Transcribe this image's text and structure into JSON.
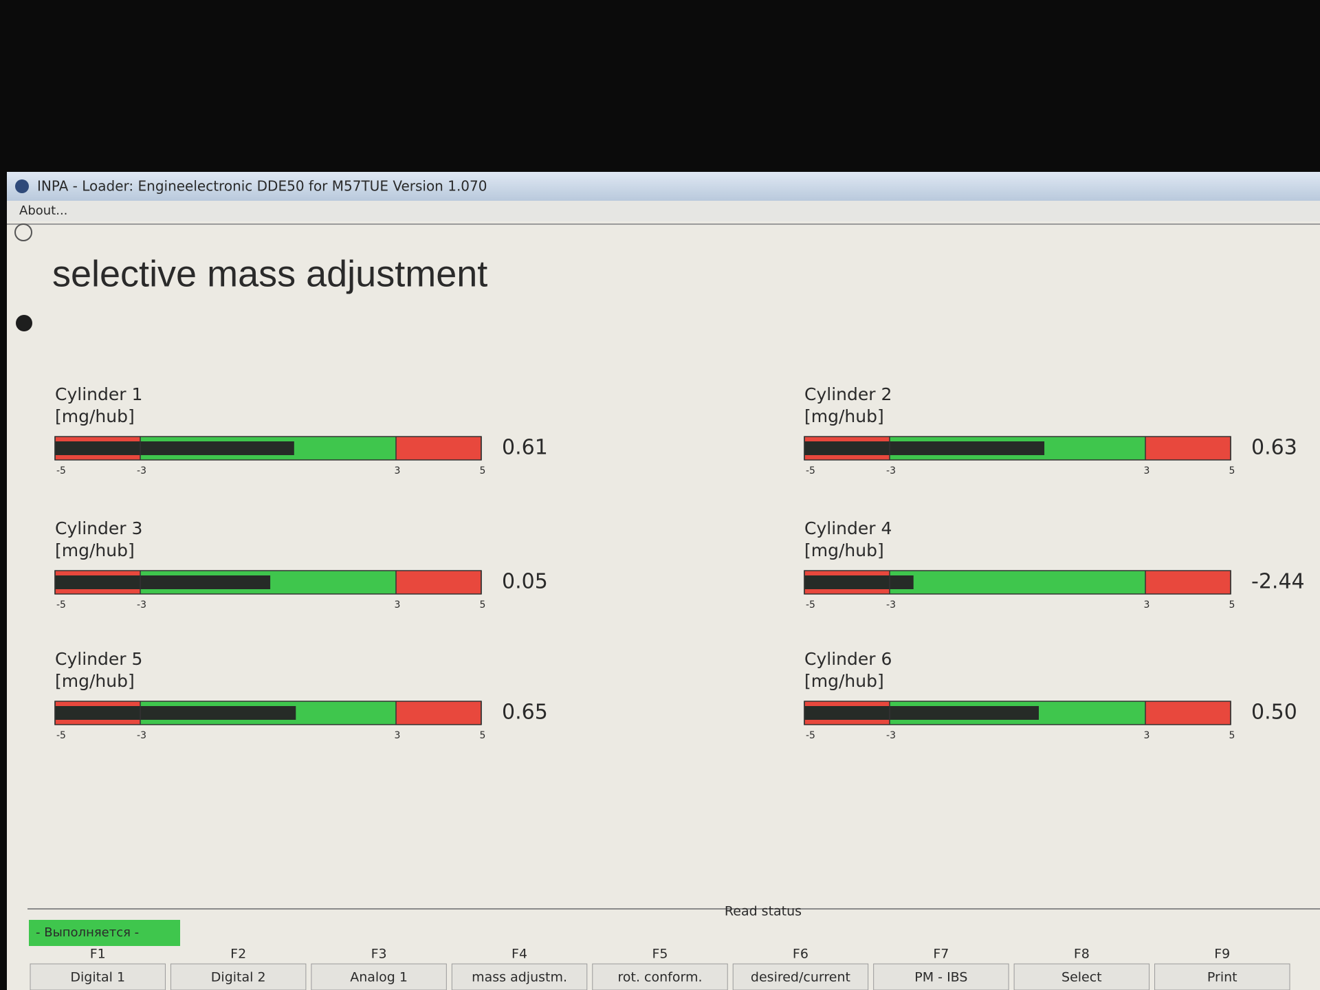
{
  "window": {
    "title": "INPA - Loader:  Engineelectronic DDE50 for M57TUE Version 1.070",
    "menu": [
      "About..."
    ]
  },
  "heading": "selective mass adjustment",
  "scale": {
    "min": -5,
    "max": 5,
    "ticks": [
      -5,
      -3,
      3,
      5
    ],
    "zone_colors": [
      "#e8483d",
      "#3fc64d",
      "#e8483d"
    ],
    "fill_color": "#262b27"
  },
  "gauges": [
    {
      "label": "Cylinder 1",
      "unit": "[mg/hub]",
      "value": 0.61
    },
    {
      "label": "Cylinder 2",
      "unit": "[mg/hub]",
      "value": 0.63
    },
    {
      "label": "Cylinder 3",
      "unit": "[mg/hub]",
      "value": 0.05
    },
    {
      "label": "Cylinder 4",
      "unit": "[mg/hub]",
      "value": -2.44
    },
    {
      "label": "Cylinder 5",
      "unit": "[mg/hub]",
      "value": 0.65
    },
    {
      "label": "Cylinder 6",
      "unit": "[mg/hub]",
      "value": 0.5,
      "value_label": "0.50"
    }
  ],
  "status": {
    "running": "- Выполняется -",
    "caption": "Read status"
  },
  "function_keys": [
    {
      "key": "F1",
      "label": "Digital 1"
    },
    {
      "key": "F2",
      "label": "Digital 2"
    },
    {
      "key": "F3",
      "label": "Analog 1"
    },
    {
      "key": "F4",
      "label": "mass adjustm."
    },
    {
      "key": "F5",
      "label": "rot. conform."
    },
    {
      "key": "F6",
      "label": "desired/current"
    },
    {
      "key": "F7",
      "label": "PM - IBS"
    },
    {
      "key": "F8",
      "label": "Select"
    },
    {
      "key": "F9",
      "label": "Print"
    }
  ]
}
